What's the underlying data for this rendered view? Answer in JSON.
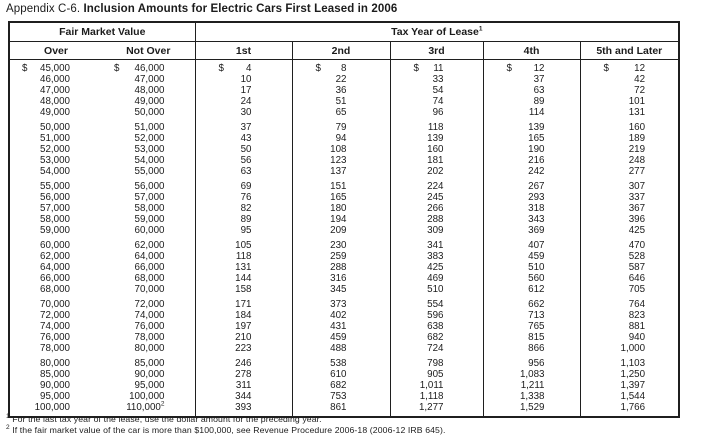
{
  "title": {
    "prefix": "Appendix C-6.",
    "main": "Inclusion Amounts for Electric Cars First Leased in 2006"
  },
  "table": {
    "dollar_sign": "$",
    "header": {
      "fair_market_value": "Fair Market Value",
      "tax_year": "Tax Year of Lease",
      "tax_year_footnote_marker": "1",
      "columns": [
        "Over",
        "Not Over",
        "1st",
        "2nd",
        "3rd",
        "4th",
        "5th and Later"
      ]
    },
    "last_not_over_footnote_marker": "2",
    "groups": [
      [
        [
          "45,000",
          "46,000",
          "4",
          "8",
          "11",
          "12",
          "12"
        ],
        [
          "46,000",
          "47,000",
          "10",
          "22",
          "33",
          "37",
          "42"
        ],
        [
          "47,000",
          "48,000",
          "17",
          "36",
          "54",
          "63",
          "72"
        ],
        [
          "48,000",
          "49,000",
          "24",
          "51",
          "74",
          "89",
          "101"
        ],
        [
          "49,000",
          "50,000",
          "30",
          "65",
          "96",
          "114",
          "131"
        ]
      ],
      [
        [
          "50,000",
          "51,000",
          "37",
          "79",
          "118",
          "139",
          "160"
        ],
        [
          "51,000",
          "52,000",
          "43",
          "94",
          "139",
          "165",
          "189"
        ],
        [
          "52,000",
          "53,000",
          "50",
          "108",
          "160",
          "190",
          "219"
        ],
        [
          "53,000",
          "54,000",
          "56",
          "123",
          "181",
          "216",
          "248"
        ],
        [
          "54,000",
          "55,000",
          "63",
          "137",
          "202",
          "242",
          "277"
        ]
      ],
      [
        [
          "55,000",
          "56,000",
          "69",
          "151",
          "224",
          "267",
          "307"
        ],
        [
          "56,000",
          "57,000",
          "76",
          "165",
          "245",
          "293",
          "337"
        ],
        [
          "57,000",
          "58,000",
          "82",
          "180",
          "266",
          "318",
          "367"
        ],
        [
          "58,000",
          "59,000",
          "89",
          "194",
          "288",
          "343",
          "396"
        ],
        [
          "59,000",
          "60,000",
          "95",
          "209",
          "309",
          "369",
          "425"
        ]
      ],
      [
        [
          "60,000",
          "62,000",
          "105",
          "230",
          "341",
          "407",
          "470"
        ],
        [
          "62,000",
          "64,000",
          "118",
          "259",
          "383",
          "459",
          "528"
        ],
        [
          "64,000",
          "66,000",
          "131",
          "288",
          "425",
          "510",
          "587"
        ],
        [
          "66,000",
          "68,000",
          "144",
          "316",
          "469",
          "560",
          "646"
        ],
        [
          "68,000",
          "70,000",
          "158",
          "345",
          "510",
          "612",
          "705"
        ]
      ],
      [
        [
          "70,000",
          "72,000",
          "171",
          "373",
          "554",
          "662",
          "764"
        ],
        [
          "72,000",
          "74,000",
          "184",
          "402",
          "596",
          "713",
          "823"
        ],
        [
          "74,000",
          "76,000",
          "197",
          "431",
          "638",
          "765",
          "881"
        ],
        [
          "76,000",
          "78,000",
          "210",
          "459",
          "682",
          "815",
          "940"
        ],
        [
          "78,000",
          "80,000",
          "223",
          "488",
          "724",
          "866",
          "1,000"
        ]
      ],
      [
        [
          "80,000",
          "85,000",
          "246",
          "538",
          "798",
          "956",
          "1,103"
        ],
        [
          "85,000",
          "90,000",
          "278",
          "610",
          "905",
          "1,083",
          "1,250"
        ],
        [
          "90,000",
          "95,000",
          "311",
          "682",
          "1,011",
          "1,211",
          "1,397"
        ],
        [
          "95,000",
          "100,000",
          "344",
          "753",
          "1,118",
          "1,338",
          "1,544"
        ],
        [
          "100,000",
          "110,000",
          "393",
          "861",
          "1,277",
          "1,529",
          "1,766"
        ]
      ]
    ]
  },
  "footnotes": [
    {
      "marker": "1",
      "text": "For the last tax year of the lease, use the dollar amount for the preceding year."
    },
    {
      "marker": "2",
      "text": "If the fair market value of the car is more than $100,000, see Revenue Procedure 2006-18 (2006-12 IRB 645)."
    }
  ]
}
